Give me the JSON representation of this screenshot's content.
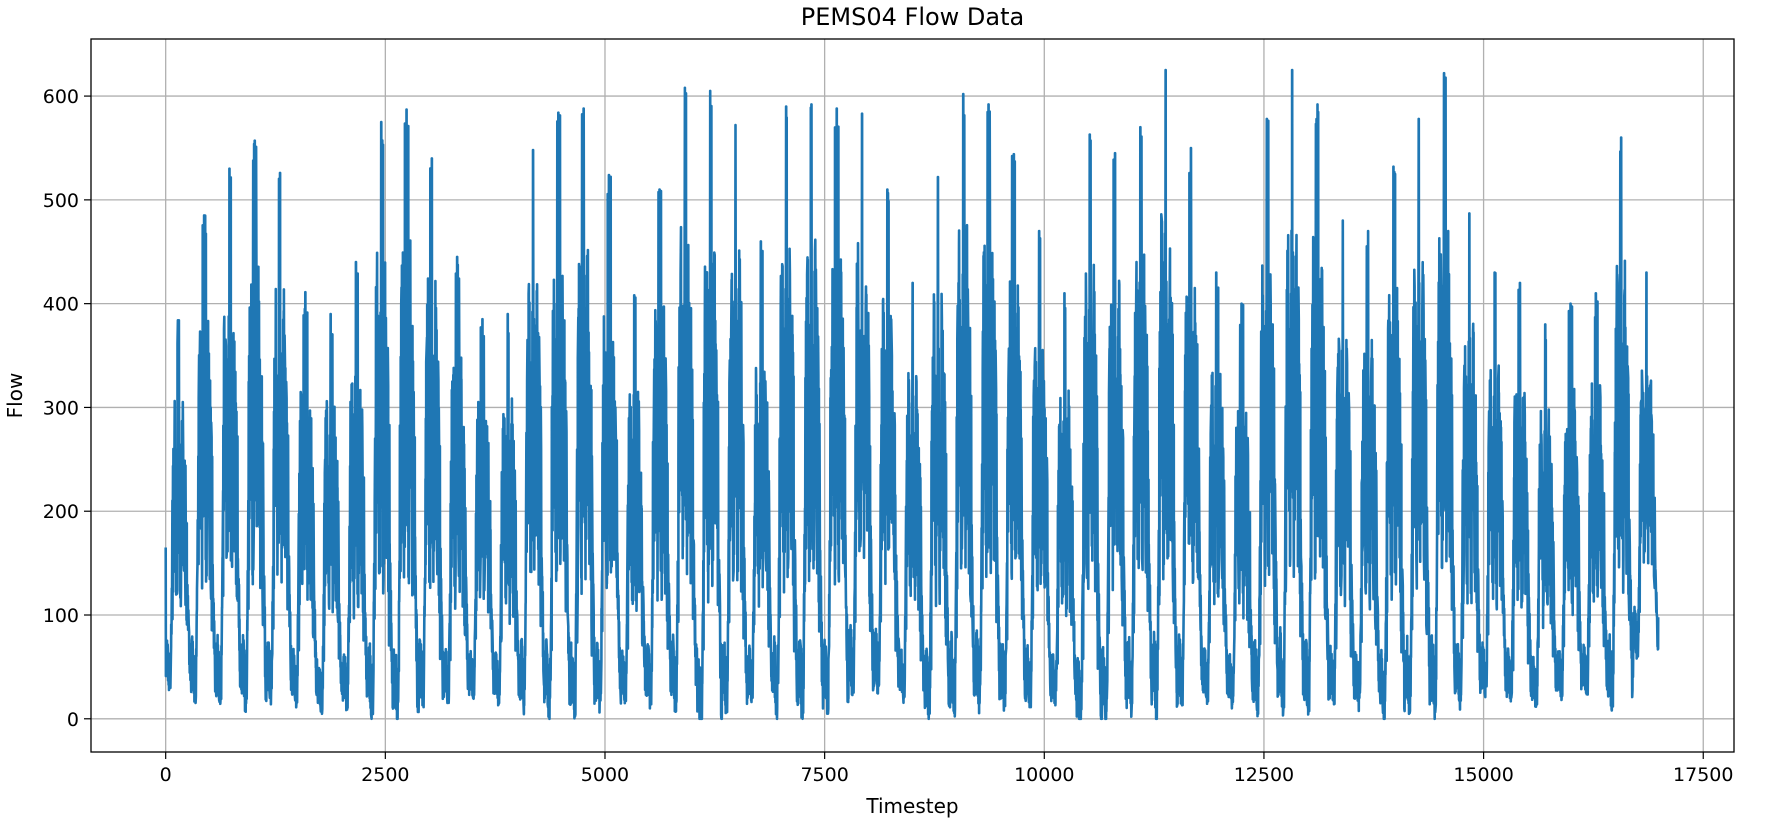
{
  "chart_data": {
    "type": "line",
    "title": "PEMS04 Flow Data",
    "xlabel": "Timestep",
    "ylabel": "Flow",
    "xlim": [
      -850,
      17850
    ],
    "ylim": [
      -32,
      655
    ],
    "x_ticks": [
      0,
      2500,
      5000,
      7500,
      10000,
      12500,
      15000,
      17500
    ],
    "x_tick_labels": [
      "0",
      "2500",
      "5000",
      "7500",
      "10000",
      "12500",
      "15000",
      "17500"
    ],
    "y_ticks": [
      0,
      100,
      200,
      300,
      400,
      500,
      600
    ],
    "y_tick_labels": [
      "0",
      "100",
      "200",
      "300",
      "400",
      "500",
      "600"
    ],
    "grid": true,
    "line_color": "#1f77b4",
    "series": [
      {
        "x_start": 0,
        "x_step": 1,
        "n_points": 16992,
        "points_per_day": 288,
        "days": 59,
        "daily_peaks": [
          384,
          485,
          530,
          557,
          526,
          411,
          390,
          440,
          575,
          587,
          540,
          445,
          385,
          390,
          548,
          584,
          588,
          524,
          408,
          510,
          608,
          605,
          572,
          460,
          590,
          592,
          588,
          583,
          510,
          420,
          522,
          602,
          592,
          544,
          470,
          410,
          563,
          545,
          570,
          625,
          550,
          430,
          400,
          578,
          625,
          592,
          480,
          470,
          532,
          578,
          622,
          487,
          430,
          420,
          380,
          400,
          410,
          560,
          430
        ],
        "daily_lows": [
          37,
          28,
          25,
          22,
          28,
          24,
          14,
          20,
          11,
          10,
          22,
          26,
          28,
          24,
          20,
          14,
          17,
          20,
          24,
          23,
          20,
          0,
          18,
          24,
          16,
          15,
          20,
          32,
          36,
          26,
          12,
          18,
          22,
          20,
          22,
          20,
          0,
          14,
          20,
          18,
          22,
          26,
          20,
          18,
          22,
          18,
          24,
          22,
          12,
          20,
          18,
          24,
          30,
          25,
          20,
          28,
          30,
          22,
          68
        ],
        "start_value": 165,
        "end_value": 72
      }
    ]
  }
}
